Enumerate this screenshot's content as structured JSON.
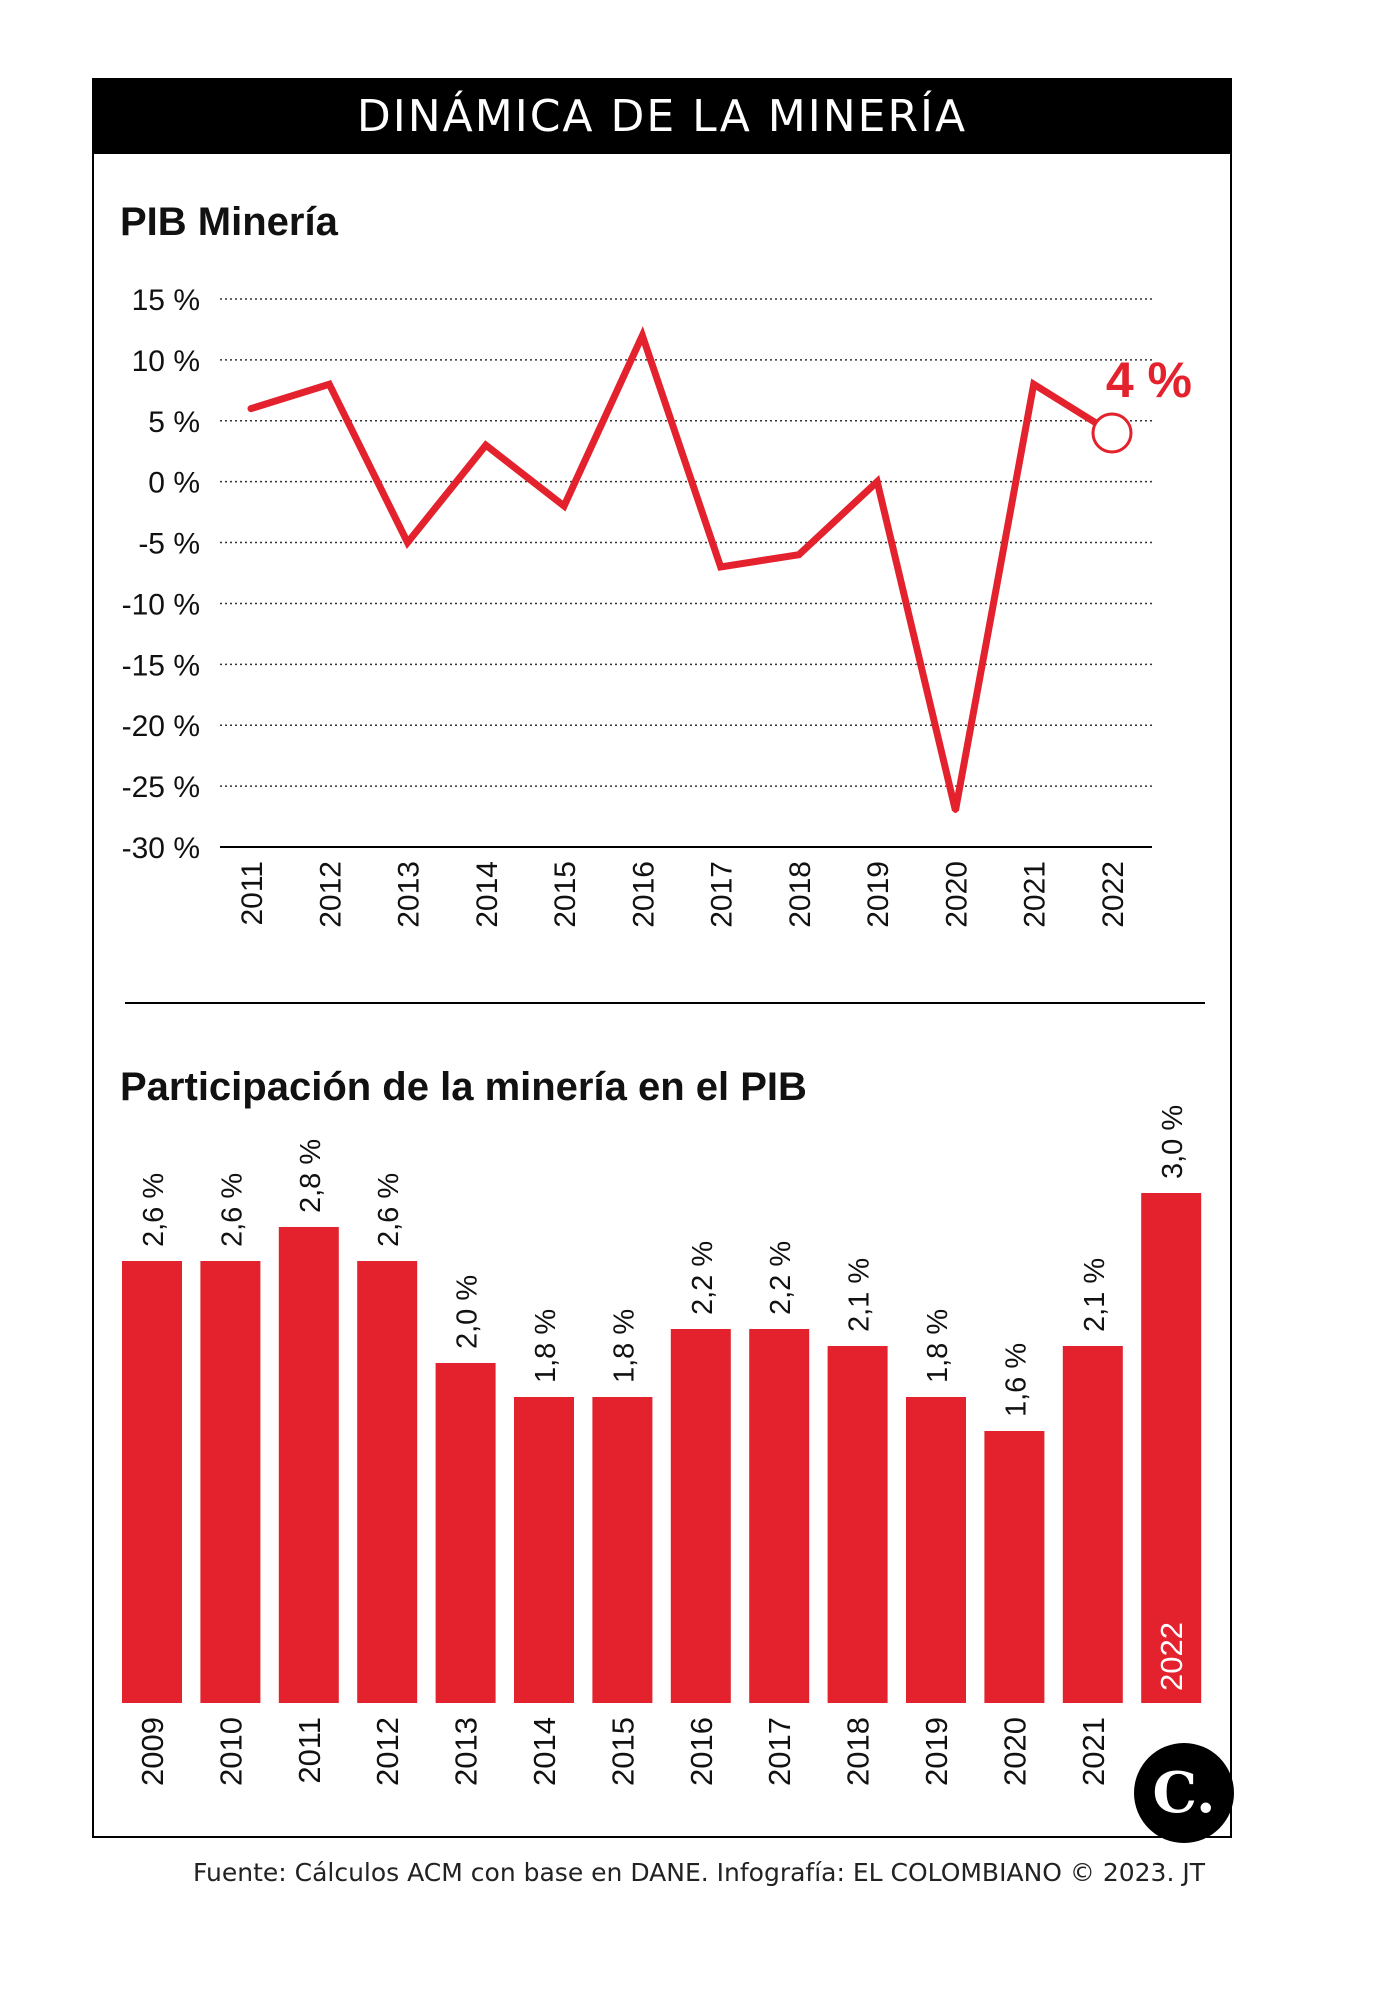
{
  "header": {
    "title": "DINÁMICA DE LA MINERÍA"
  },
  "footer": {
    "source": "Fuente: Cálculos ACM con base en DANE. Infografía: EL COLOMBIANO © 2023. JT"
  },
  "logo": {
    "glyph": "C."
  },
  "colors": {
    "accent": "#e3222d",
    "grid": "#333333",
    "text": "#111111"
  },
  "chart_data": [
    {
      "type": "line",
      "title": "PIB Minería",
      "x": [
        "2011",
        "2012",
        "2013",
        "2014",
        "2015",
        "2016",
        "2017",
        "2018",
        "2019",
        "2020",
        "2021",
        "2022"
      ],
      "series": [
        {
          "values": [
            6,
            8,
            -5,
            3,
            -2,
            12,
            -7,
            -6,
            0,
            -27,
            8,
            4
          ]
        }
      ],
      "y_ticks": [
        15,
        10,
        5,
        0,
        -5,
        -10,
        -15,
        -20,
        -25,
        -30
      ],
      "y_tick_labels": [
        "15 %",
        "10 %",
        "5 %",
        "0 %",
        "-5 %",
        "-10 %",
        "-15 %",
        "-20 %",
        "-25 %",
        "-30 %"
      ],
      "ylim": [
        -30,
        15
      ],
      "grid": true,
      "annotation": {
        "x": "2022",
        "text": "4 %"
      }
    },
    {
      "type": "bar",
      "title": "Participación de la minería en el PIB",
      "categories": [
        "2009",
        "2010",
        "2011",
        "2012",
        "2013",
        "2014",
        "2015",
        "2016",
        "2017",
        "2018",
        "2019",
        "2020",
        "2021",
        "2022"
      ],
      "values": [
        2.6,
        2.6,
        2.8,
        2.6,
        2.0,
        1.8,
        1.8,
        2.2,
        2.2,
        2.1,
        1.8,
        1.6,
        2.1,
        3.0
      ],
      "value_labels": [
        "2,6 %",
        "2,6 %",
        "2,8 %",
        "2,6 %",
        "2,0 %",
        "1,8 %",
        "1,8 %",
        "2,2 %",
        "2,2 %",
        "2,1 %",
        "1,8 %",
        "1,6 %",
        "2,1 %",
        "3,0 %"
      ],
      "ylim": [
        0,
        3.0
      ],
      "highlight": "2022"
    }
  ]
}
